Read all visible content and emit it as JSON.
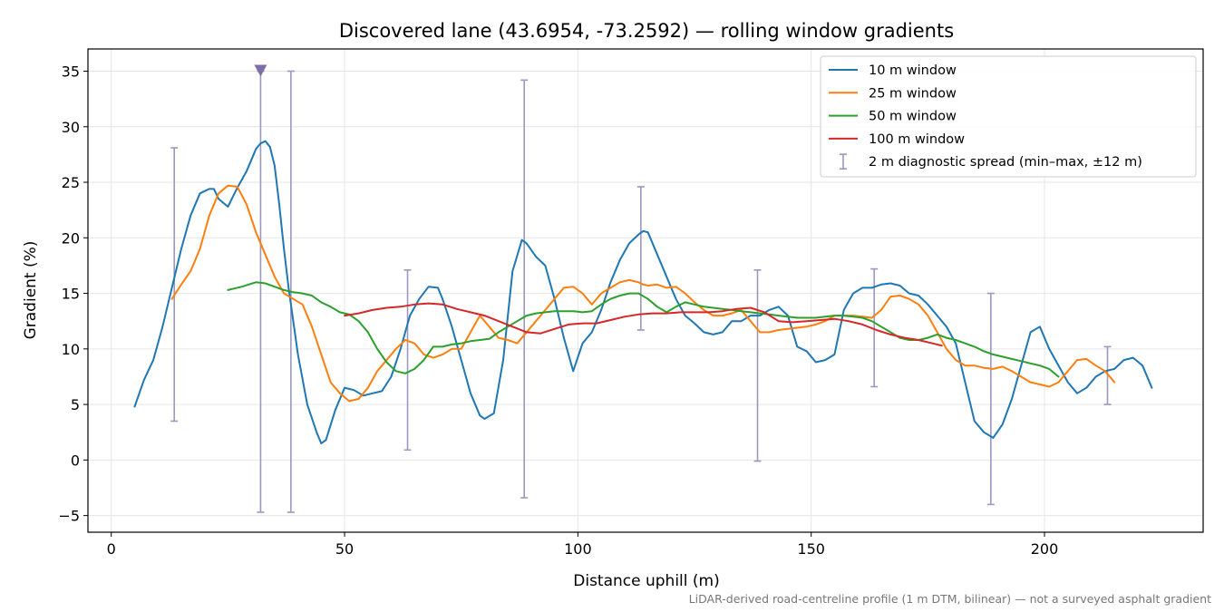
{
  "chart_data": {
    "type": "line",
    "title": "Discovered lane (43.6954, -73.2592) — rolling window gradients",
    "xlabel": "Distance uphill (m)",
    "ylabel": "Gradient (%)",
    "footnote": "LiDAR-derived road-centreline profile (1 m DTM, bilinear) — not a surveyed asphalt gradient",
    "xlim": [
      -5,
      234
    ],
    "ylim": [
      -6.5,
      37
    ],
    "xticks": [
      0,
      50,
      100,
      150,
      200
    ],
    "yticks": [
      -5,
      0,
      5,
      10,
      15,
      20,
      25,
      30,
      35
    ],
    "grid": true,
    "legend_placement": "top-right",
    "colors": {
      "10m": "#1f77b4",
      "25m": "#ff7f0e",
      "50m": "#2ca02c",
      "100m": "#d62728",
      "spread": "#9b98c2",
      "marker": "#7f6fa6"
    },
    "series": [
      {
        "name": "10 m window",
        "color": "#1f77b4",
        "x": [
          5,
          7,
          9,
          11,
          13,
          15,
          17,
          19,
          20,
          21,
          22,
          23,
          25,
          27,
          29,
          31,
          32,
          33,
          34,
          35,
          36,
          37,
          38,
          40,
          42,
          44,
          45,
          46,
          48,
          50,
          52,
          54,
          56,
          58,
          60,
          62,
          64,
          66,
          68,
          70,
          71,
          73,
          75,
          77,
          79,
          80,
          82,
          84,
          86,
          88,
          89,
          91,
          93,
          95,
          97,
          99,
          101,
          103,
          105,
          107,
          109,
          111,
          113,
          114,
          115,
          117,
          119,
          121,
          123,
          125,
          127,
          129,
          131,
          133,
          135,
          137,
          139,
          141,
          143,
          145,
          147,
          149,
          151,
          153,
          155,
          157,
          159,
          161,
          163,
          165,
          167,
          169,
          171,
          173,
          175,
          177,
          179,
          181,
          183,
          185,
          187,
          189,
          191,
          193,
          195,
          197,
          199,
          201,
          203,
          205,
          207,
          209,
          211,
          213,
          215,
          217,
          219,
          221,
          223
        ],
        "y": [
          4.8,
          7.2,
          9.0,
          12.0,
          15.5,
          19.0,
          22.0,
          24.0,
          24.2,
          24.4,
          24.4,
          23.5,
          22.8,
          24.5,
          26.0,
          28.0,
          28.5,
          28.7,
          28.2,
          26.5,
          23.0,
          19.0,
          15.5,
          9.5,
          5.0,
          2.5,
          1.5,
          1.8,
          4.5,
          6.5,
          6.3,
          5.8,
          6.0,
          6.2,
          7.5,
          10.0,
          13.0,
          14.5,
          15.6,
          15.5,
          14.5,
          12.0,
          9.0,
          6.0,
          4.0,
          3.7,
          4.2,
          9.0,
          17.0,
          19.8,
          19.5,
          18.3,
          17.5,
          14.5,
          11.0,
          8.0,
          10.5,
          11.5,
          13.5,
          16.0,
          18.0,
          19.5,
          20.3,
          20.6,
          20.5,
          18.5,
          16.5,
          14.5,
          13.0,
          12.3,
          11.5,
          11.3,
          11.5,
          12.5,
          12.5,
          13.0,
          13.0,
          13.5,
          13.8,
          13.0,
          10.2,
          9.8,
          8.8,
          9.0,
          9.5,
          13.5,
          15.0,
          15.5,
          15.5,
          15.8,
          15.9,
          15.7,
          15.0,
          14.8,
          14.0,
          13.0,
          12.0,
          10.5,
          7.0,
          3.5,
          2.5,
          2.0,
          3.2,
          5.5,
          8.5,
          11.5,
          12.0,
          10.0,
          8.5,
          7.0,
          6.0,
          6.5,
          7.5,
          8.0,
          8.2,
          9.0,
          9.2,
          8.5,
          6.5
        ]
      },
      {
        "name": "25 m window",
        "color": "#ff7f0e",
        "x": [
          13,
          15,
          17,
          19,
          21,
          23,
          25,
          27,
          29,
          31,
          33,
          35,
          37,
          39,
          41,
          43,
          45,
          47,
          49,
          51,
          53,
          55,
          57,
          59,
          61,
          63,
          65,
          67,
          69,
          71,
          73,
          75,
          77,
          79,
          81,
          83,
          85,
          87,
          89,
          91,
          93,
          95,
          97,
          99,
          101,
          103,
          105,
          107,
          109,
          111,
          113,
          114,
          115,
          117,
          119,
          121,
          123,
          125,
          127,
          129,
          131,
          133,
          135,
          137,
          139,
          141,
          143,
          145,
          147,
          149,
          151,
          153,
          155,
          157,
          159,
          161,
          163,
          165,
          167,
          169,
          171,
          173,
          175,
          177,
          179,
          181,
          183,
          185,
          187,
          189,
          191,
          193,
          195,
          197,
          199,
          201,
          203,
          205,
          207,
          209,
          211,
          213,
          215
        ],
        "y": [
          14.5,
          15.8,
          17.0,
          19.0,
          22.0,
          24.0,
          24.7,
          24.6,
          23.0,
          20.5,
          18.5,
          16.5,
          15.0,
          14.5,
          14.0,
          12.0,
          9.5,
          7.0,
          6.0,
          5.3,
          5.5,
          6.5,
          8.0,
          9.0,
          10.0,
          10.8,
          10.5,
          9.5,
          9.2,
          9.5,
          10.0,
          10.0,
          11.5,
          13.0,
          12.0,
          11.0,
          10.8,
          10.5,
          11.5,
          12.5,
          13.5,
          14.5,
          15.5,
          15.6,
          15.0,
          14.0,
          15.0,
          15.5,
          16.0,
          16.2,
          16.0,
          15.8,
          15.7,
          15.8,
          15.5,
          15.6,
          15.0,
          14.2,
          13.5,
          13.0,
          13.0,
          13.2,
          13.5,
          12.5,
          11.5,
          11.5,
          11.7,
          11.8,
          11.9,
          12.0,
          12.2,
          12.5,
          13.0,
          13.0,
          13.0,
          12.9,
          12.8,
          13.5,
          14.7,
          14.8,
          14.5,
          14.0,
          13.0,
          11.5,
          10.0,
          9.0,
          8.5,
          8.5,
          8.3,
          8.2,
          8.4,
          8.0,
          7.5,
          7.0,
          6.8,
          6.6,
          7.0,
          8.0,
          9.0,
          9.1,
          8.5,
          8.0,
          7.0
        ]
      },
      {
        "name": "50 m window",
        "color": "#2ca02c",
        "x": [
          25,
          28,
          31,
          33,
          35,
          37,
          39,
          41,
          43,
          45,
          47,
          49,
          51,
          53,
          55,
          57,
          59,
          61,
          63,
          65,
          67,
          69,
          71,
          73,
          75,
          77,
          79,
          81,
          83,
          85,
          87,
          89,
          91,
          93,
          95,
          97,
          99,
          101,
          103,
          105,
          107,
          109,
          111,
          113,
          115,
          117,
          119,
          121,
          123,
          125,
          127,
          129,
          131,
          133,
          135,
          137,
          139,
          141,
          143,
          145,
          147,
          149,
          151,
          153,
          155,
          157,
          159,
          161,
          163,
          165,
          167,
          169,
          171,
          173,
          175,
          177,
          179,
          181,
          183,
          185,
          187,
          189,
          191,
          193,
          195,
          197,
          199,
          201,
          203
        ],
        "y": [
          15.3,
          15.6,
          16.0,
          15.9,
          15.6,
          15.3,
          15.1,
          15.0,
          14.8,
          14.2,
          13.8,
          13.3,
          13.1,
          12.5,
          11.5,
          10.0,
          8.8,
          8.0,
          7.8,
          8.2,
          9.0,
          10.2,
          10.2,
          10.4,
          10.5,
          10.7,
          10.8,
          10.9,
          11.5,
          12.0,
          12.5,
          13.0,
          13.2,
          13.3,
          13.4,
          13.4,
          13.4,
          13.3,
          13.4,
          14.0,
          14.5,
          14.8,
          15.0,
          15.0,
          14.5,
          13.8,
          13.3,
          13.8,
          14.2,
          14.0,
          13.8,
          13.7,
          13.6,
          13.5,
          13.4,
          13.3,
          13.2,
          13.1,
          13.0,
          12.9,
          12.8,
          12.8,
          12.8,
          12.9,
          13.0,
          13.0,
          12.9,
          12.8,
          12.5,
          12.0,
          11.5,
          11.0,
          10.8,
          10.8,
          11.0,
          11.3,
          11.0,
          10.8,
          10.5,
          10.2,
          9.8,
          9.5,
          9.3,
          9.1,
          8.9,
          8.7,
          8.5,
          8.2,
          7.5
        ]
      },
      {
        "name": "100 m window",
        "color": "#d62728",
        "x": [
          50,
          53,
          56,
          59,
          62,
          65,
          68,
          71,
          74,
          77,
          80,
          83,
          86,
          89,
          92,
          95,
          98,
          101,
          104,
          107,
          110,
          113,
          116,
          119,
          122,
          125,
          128,
          131,
          134,
          137,
          140,
          143,
          146,
          149,
          152,
          155,
          158,
          161,
          164,
          167,
          170,
          173,
          176,
          178
        ],
        "y": [
          13.0,
          13.2,
          13.5,
          13.7,
          13.8,
          14.0,
          14.1,
          14.0,
          13.6,
          13.3,
          13.0,
          12.5,
          12.0,
          11.5,
          11.4,
          11.8,
          12.2,
          12.3,
          12.3,
          12.6,
          12.9,
          13.1,
          13.2,
          13.2,
          13.3,
          13.3,
          13.3,
          13.4,
          13.6,
          13.7,
          13.3,
          12.5,
          12.4,
          12.5,
          12.6,
          12.7,
          12.5,
          12.2,
          11.7,
          11.3,
          11.0,
          10.8,
          10.5,
          10.3
        ]
      }
    ],
    "error_bars": {
      "name": "2 m diagnostic spread (min–max, ±12 m)",
      "color": "#9b98c2",
      "items": [
        {
          "x": 13.5,
          "low": 3.5,
          "high": 28.1
        },
        {
          "x": 32,
          "low": -4.7,
          "high": 35.0
        },
        {
          "x": 38.5,
          "low": -4.7,
          "high": 35.0
        },
        {
          "x": 63.5,
          "low": 0.9,
          "high": 17.1
        },
        {
          "x": 88.5,
          "low": -3.4,
          "high": 34.2
        },
        {
          "x": 113.5,
          "low": 11.7,
          "high": 24.6
        },
        {
          "x": 138.5,
          "low": -0.1,
          "high": 17.1
        },
        {
          "x": 163.5,
          "low": 6.6,
          "high": 17.2
        },
        {
          "x": 188.5,
          "low": -4.0,
          "high": 15.0
        },
        {
          "x": 213.5,
          "low": 5.0,
          "high": 10.2
        }
      ]
    },
    "marker": {
      "x": 32,
      "y": 35.0,
      "shape": "down-triangle",
      "color": "#7f6fa6"
    }
  }
}
